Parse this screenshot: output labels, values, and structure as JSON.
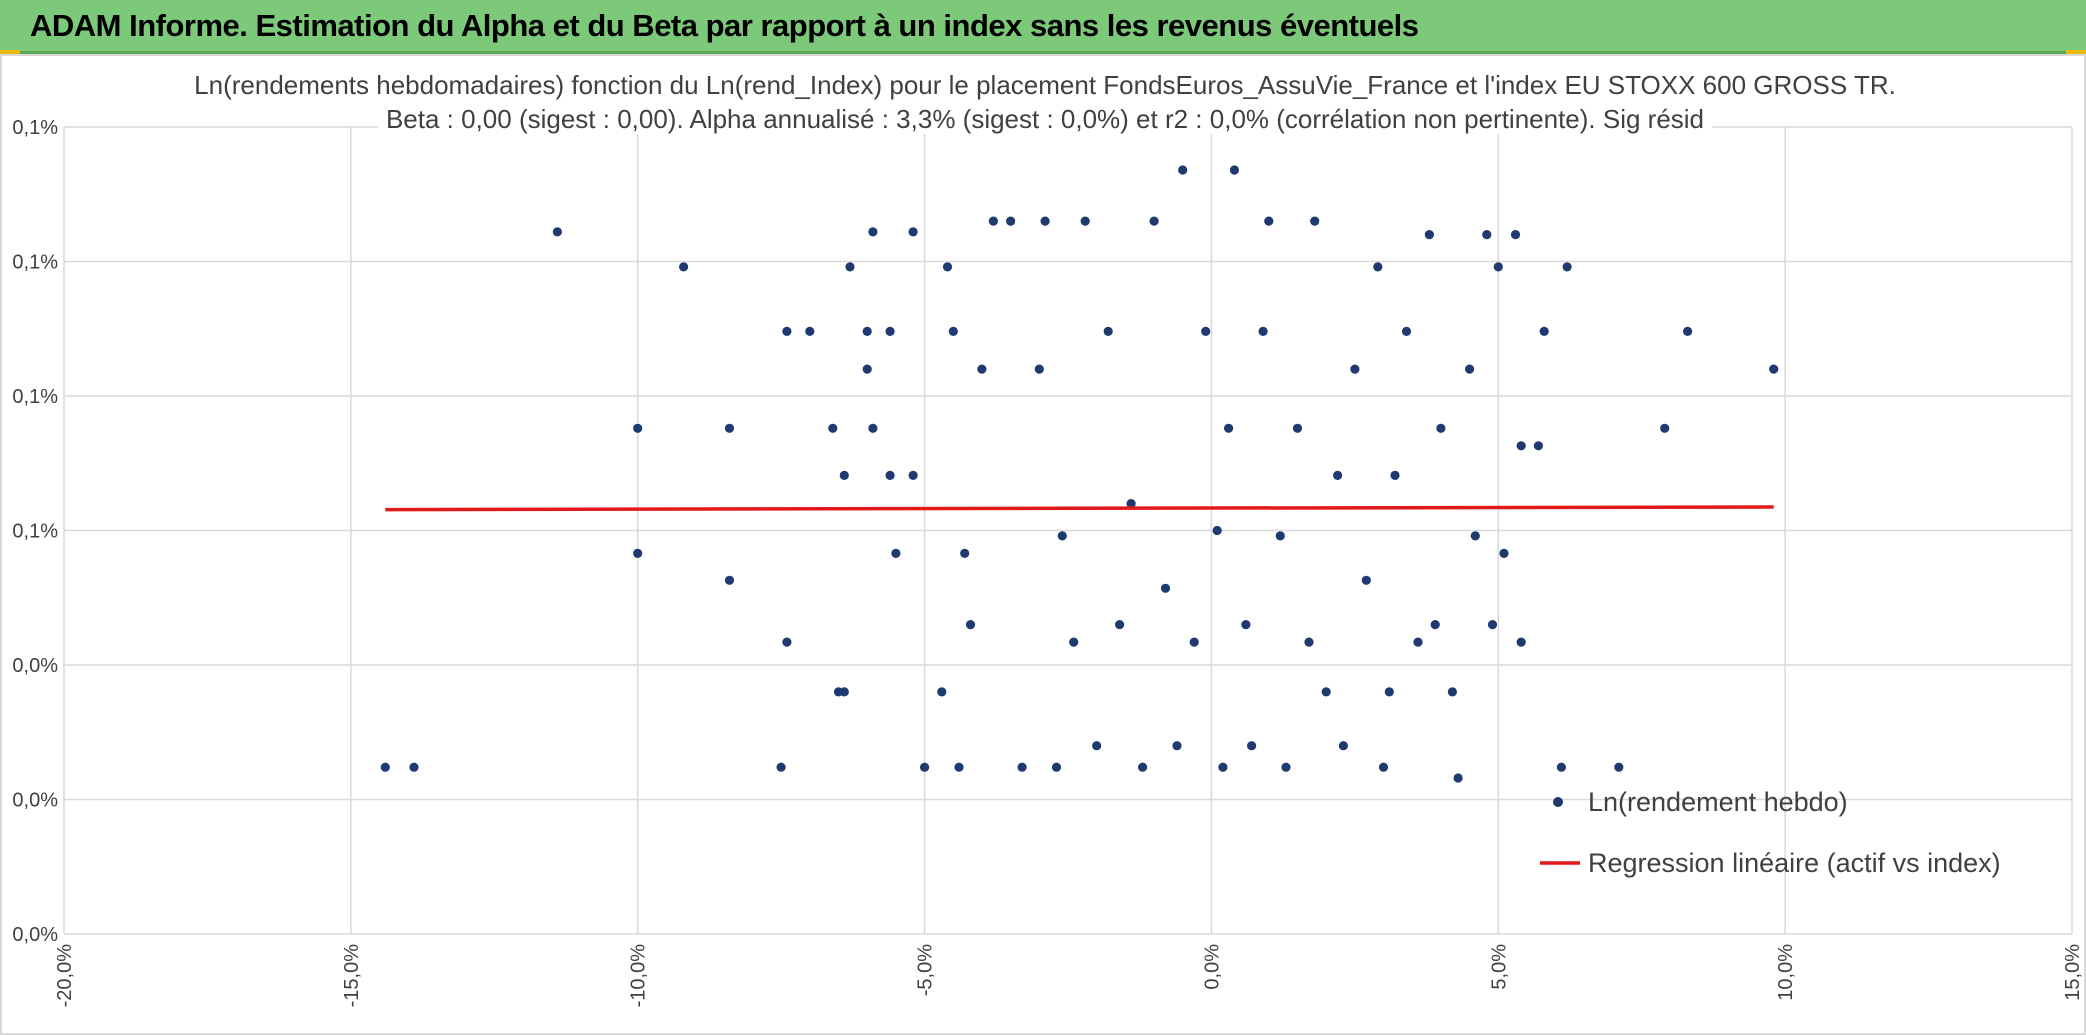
{
  "banner": {
    "title": "ADAM Informe. Estimation du Alpha et du Beta par rapport à un index sans les revenus éventuels"
  },
  "colors": {
    "banner_bg": "#7cc97a",
    "points": "#1f3a6e",
    "regression": "#e31a1c",
    "grid": "#d9d9d9",
    "text": "#404040",
    "corner_accent": "#e8b90f"
  },
  "chart_data": {
    "type": "scatter",
    "title": "Ln(rendements hebdomadaires) fonction du Ln(rend_Index) pour le placement FondsEuros_AssuVie_France et l'index EU STOXX 600 GROSS TR.",
    "subtitle": "Beta : 0,00 (sigest : 0,00). Alpha annualisé : 3,3% (sigest : 0,0%) et r2 : 0,0% (corrélation non pertinente). Sig résid",
    "xlabel": "",
    "ylabel": "",
    "xlim": [
      -20,
      15
    ],
    "ylim": [
      0.0,
      0.06
    ],
    "x_ticks": [
      "-20,0%",
      "-15,0%",
      "-10,0%",
      "-5,0%",
      "0,0%",
      "5,0%",
      "10,0%",
      "15,0%"
    ],
    "y_ticks": [
      "0,0%",
      "0,0%",
      "0,0%",
      "0,1%",
      "0,1%",
      "0,1%",
      "0,1%"
    ],
    "grid": true,
    "legend_position": "bottom-right",
    "series": [
      {
        "name": "Ln(rendement hebdo)",
        "kind": "scatter",
        "points": [
          [
            -14.4,
            0.0124
          ],
          [
            -13.9,
            0.0124
          ],
          [
            -11.4,
            0.0522
          ],
          [
            -9.2,
            0.0496
          ],
          [
            -10.0,
            0.0376
          ],
          [
            -10.0,
            0.0283
          ],
          [
            -8.4,
            0.0376
          ],
          [
            -8.4,
            0.0263
          ],
          [
            -7.5,
            0.0124
          ],
          [
            -7.4,
            0.0217
          ],
          [
            -7.4,
            0.0448
          ],
          [
            -7.0,
            0.0448
          ],
          [
            -6.6,
            0.0376
          ],
          [
            -6.5,
            0.018
          ],
          [
            -6.4,
            0.018
          ],
          [
            -6.4,
            0.0341
          ],
          [
            -6.3,
            0.0496
          ],
          [
            -6.0,
            0.0448
          ],
          [
            -6.0,
            0.042
          ],
          [
            -5.9,
            0.0376
          ],
          [
            -5.9,
            0.0522
          ],
          [
            -5.6,
            0.0448
          ],
          [
            -5.6,
            0.0341
          ],
          [
            -5.5,
            0.0283
          ],
          [
            -5.2,
            0.0522
          ],
          [
            -5.2,
            0.0341
          ],
          [
            -5.0,
            0.0124
          ],
          [
            -4.7,
            0.018
          ],
          [
            -4.6,
            0.0496
          ],
          [
            -4.5,
            0.0448
          ],
          [
            -4.4,
            0.0124
          ],
          [
            -4.3,
            0.0283
          ],
          [
            -4.2,
            0.023
          ],
          [
            -4.0,
            0.042
          ],
          [
            -3.8,
            0.053
          ],
          [
            -3.5,
            0.053
          ],
          [
            -3.3,
            0.0124
          ],
          [
            -3.0,
            0.042
          ],
          [
            -2.9,
            0.053
          ],
          [
            -2.7,
            0.0124
          ],
          [
            -2.6,
            0.0296
          ],
          [
            -2.4,
            0.0217
          ],
          [
            -2.2,
            0.053
          ],
          [
            -2.0,
            0.014
          ],
          [
            -1.8,
            0.0448
          ],
          [
            -1.6,
            0.023
          ],
          [
            -1.4,
            0.032
          ],
          [
            -1.2,
            0.0124
          ],
          [
            -1.0,
            0.053
          ],
          [
            -0.8,
            0.0257
          ],
          [
            -0.6,
            0.014
          ],
          [
            -0.5,
            0.0568
          ],
          [
            -0.3,
            0.0217
          ],
          [
            -0.1,
            0.0448
          ],
          [
            0.1,
            0.03
          ],
          [
            0.2,
            0.0124
          ],
          [
            0.3,
            0.0376
          ],
          [
            0.4,
            0.0568
          ],
          [
            0.6,
            0.023
          ],
          [
            0.7,
            0.014
          ],
          [
            0.9,
            0.0448
          ],
          [
            1.0,
            0.053
          ],
          [
            1.2,
            0.0296
          ],
          [
            1.3,
            0.0124
          ],
          [
            1.5,
            0.0376
          ],
          [
            1.7,
            0.0217
          ],
          [
            1.8,
            0.053
          ],
          [
            2.0,
            0.018
          ],
          [
            2.2,
            0.0341
          ],
          [
            2.3,
            0.014
          ],
          [
            2.5,
            0.042
          ],
          [
            2.7,
            0.0263
          ],
          [
            2.9,
            0.0496
          ],
          [
            3.0,
            0.0124
          ],
          [
            3.1,
            0.018
          ],
          [
            3.2,
            0.0341
          ],
          [
            3.4,
            0.0448
          ],
          [
            3.6,
            0.0217
          ],
          [
            3.8,
            0.052
          ],
          [
            3.9,
            0.023
          ],
          [
            4.0,
            0.0376
          ],
          [
            4.2,
            0.018
          ],
          [
            4.3,
            0.0116
          ],
          [
            4.5,
            0.042
          ],
          [
            4.6,
            0.0296
          ],
          [
            4.8,
            0.052
          ],
          [
            4.9,
            0.023
          ],
          [
            5.0,
            0.0496
          ],
          [
            5.1,
            0.0283
          ],
          [
            5.3,
            0.052
          ],
          [
            5.4,
            0.0217
          ],
          [
            5.4,
            0.0363
          ],
          [
            5.7,
            0.0363
          ],
          [
            5.8,
            0.0448
          ],
          [
            6.1,
            0.0124
          ],
          [
            6.2,
            0.0496
          ],
          [
            7.1,
            0.0124
          ],
          [
            7.9,
            0.0376
          ],
          [
            8.3,
            0.0448
          ],
          [
            9.8,
            0.042
          ]
        ]
      },
      {
        "name": "Regression linéaire (actif vs index)",
        "kind": "line",
        "points": [
          [
            -14.4,
            0.03155
          ],
          [
            9.8,
            0.03175
          ]
        ]
      }
    ]
  }
}
